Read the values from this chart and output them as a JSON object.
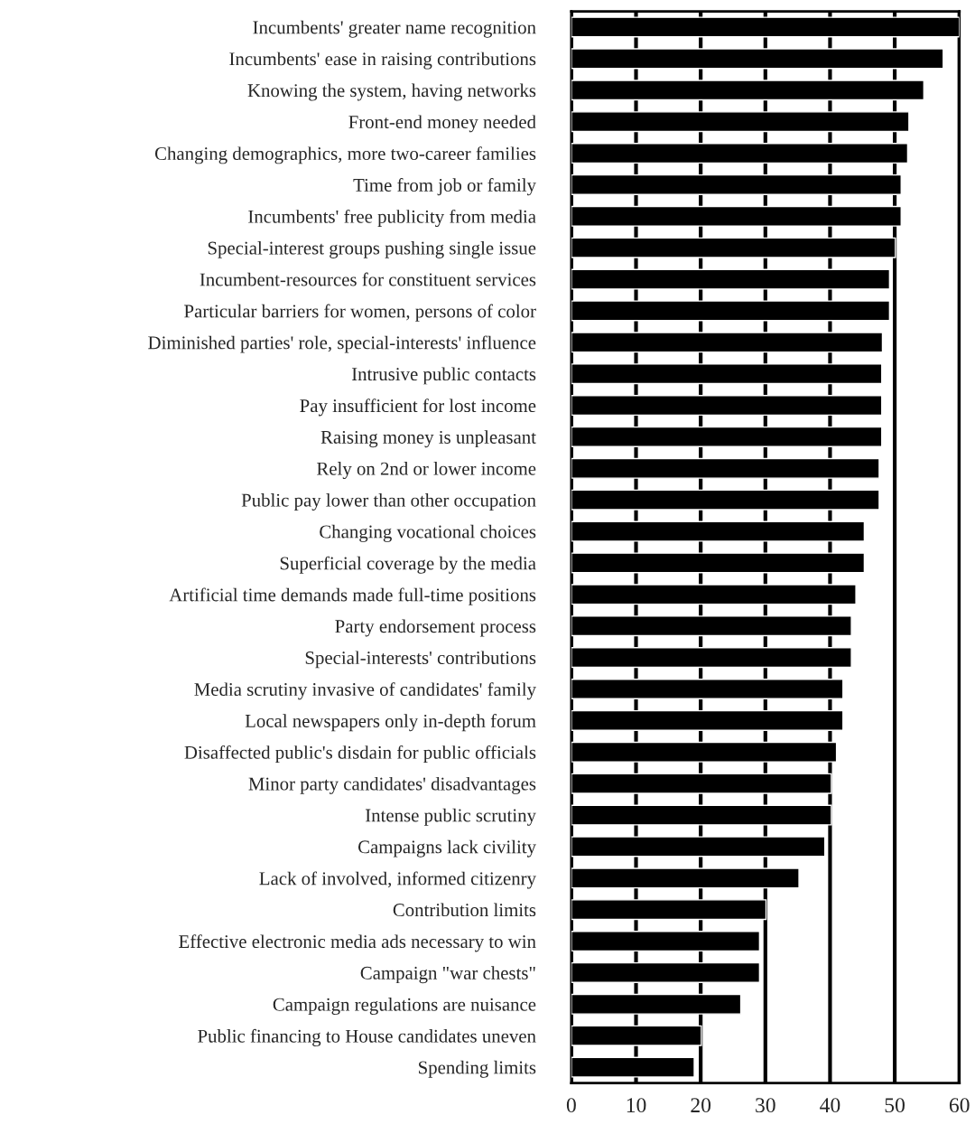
{
  "chart_data": {
    "type": "bar",
    "orientation": "horizontal",
    "color": "#000000",
    "categories": [
      "Incumbents' greater name recognition",
      "Incumbents' ease in raising contributions",
      "Knowing the system, having networks",
      "Front-end money needed",
      "Changing demographics, more two-career families",
      "Time from job or family",
      "Incumbents' free publicity from media",
      "Special-interest groups pushing single issue",
      "Incumbent-resources for constituent services",
      "Particular barriers for women, persons of color",
      "Diminished parties' role, special-interests' influence",
      "Intrusive public contacts",
      "Pay insufficient for lost income",
      "Raising money is unpleasant",
      "Rely on 2nd or lower income",
      "Public pay lower than other occupation",
      "Changing vocational choices",
      "Superficial coverage by the media",
      "Artificial time demands made full-time positions",
      "Party endorsement process",
      "Special-interests' contributions",
      "Media scrutiny invasive of candidates' family",
      "Local newspapers only in-depth forum",
      "Disaffected public's disdain for public officials",
      "Minor party candidates' disadvantages",
      "Intense public scrutiny",
      "Campaigns lack civility",
      "Lack of involved, informed citizenry",
      "Contribution limits",
      "Effective electronic media ads necessary to win",
      "Campaign \"war chests\"",
      "Campaign regulations are nuisance",
      "Public financing to House candidates uneven",
      "Spending limits"
    ],
    "values": [
      60,
      57.5,
      54.5,
      52.2,
      52,
      51,
      51,
      50.1,
      49.2,
      49.2,
      48.1,
      48,
      48,
      48,
      47.6,
      47.6,
      45.3,
      45.3,
      44,
      43.3,
      43.3,
      42,
      42,
      41,
      40.2,
      40.2,
      39.2,
      35.2,
      30.1,
      29.1,
      29.1,
      26.2,
      20.1,
      19
    ],
    "xlim": [
      0,
      60
    ],
    "xticks": [
      0,
      10,
      20,
      30,
      40,
      50,
      60
    ],
    "grid": "x"
  }
}
